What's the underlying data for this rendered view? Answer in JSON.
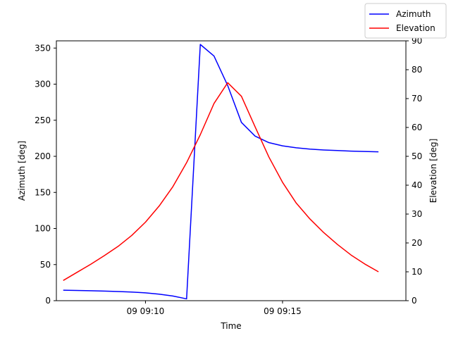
{
  "chart_data": {
    "type": "line",
    "xlabel": "Time",
    "ylabel_left": "Azimuth [deg]",
    "ylabel_right": "Elevation [deg]",
    "xlim": [
      "09:06:45",
      "09:19:30"
    ],
    "ylim_left": [
      0,
      360
    ],
    "ylim_right": [
      0,
      90
    ],
    "x_ticks": [
      {
        "time": "09:10:00",
        "label": "09 09:10"
      },
      {
        "time": "09:15:00",
        "label": "09 09:15"
      }
    ],
    "y_ticks_left": [
      0,
      50,
      100,
      150,
      200,
      250,
      300,
      350
    ],
    "y_ticks_right": [
      0,
      10,
      20,
      30,
      40,
      50,
      60,
      70,
      80,
      90
    ],
    "grid": false,
    "legend_position": "top-right",
    "series": [
      {
        "name": "Azimuth",
        "axis": "left",
        "color": "#0000ff",
        "x": [
          "09:07:00",
          "09:07:30",
          "09:08:00",
          "09:08:30",
          "09:09:00",
          "09:09:30",
          "09:10:00",
          "09:10:30",
          "09:11:00",
          "09:11:30",
          "09:12:00",
          "09:12:30",
          "09:13:00",
          "09:13:30",
          "09:14:00",
          "09:14:30",
          "09:15:00",
          "09:15:30",
          "09:16:00",
          "09:16:30",
          "09:17:00",
          "09:17:30",
          "09:18:00",
          "09:18:30"
        ],
        "y": [
          14.5,
          14.2,
          13.8,
          13.3,
          12.7,
          11.9,
          10.8,
          9.0,
          6.5,
          2.5,
          355,
          339,
          298,
          247,
          228,
          219,
          214.5,
          211.8,
          210,
          208.8,
          208,
          207.2,
          206.7,
          206.2
        ]
      },
      {
        "name": "Elevation",
        "axis": "right",
        "color": "#ff0000",
        "x": [
          "09:07:00",
          "09:07:30",
          "09:08:00",
          "09:08:30",
          "09:09:00",
          "09:09:30",
          "09:10:00",
          "09:10:30",
          "09:11:00",
          "09:11:30",
          "09:12:00",
          "09:12:30",
          "09:13:00",
          "09:13:30",
          "09:14:00",
          "09:14:30",
          "09:15:00",
          "09:15:30",
          "09:16:00",
          "09:16:30",
          "09:17:00",
          "09:17:30",
          "09:18:00",
          "09:18:30"
        ],
        "y": [
          7.0,
          9.8,
          12.6,
          15.6,
          18.8,
          22.6,
          27.2,
          32.8,
          39.5,
          47.8,
          57.5,
          68.3,
          75.5,
          70.8,
          60.2,
          49.8,
          41.0,
          33.8,
          28.3,
          23.6,
          19.5,
          15.8,
          12.7,
          10.0
        ]
      }
    ]
  }
}
